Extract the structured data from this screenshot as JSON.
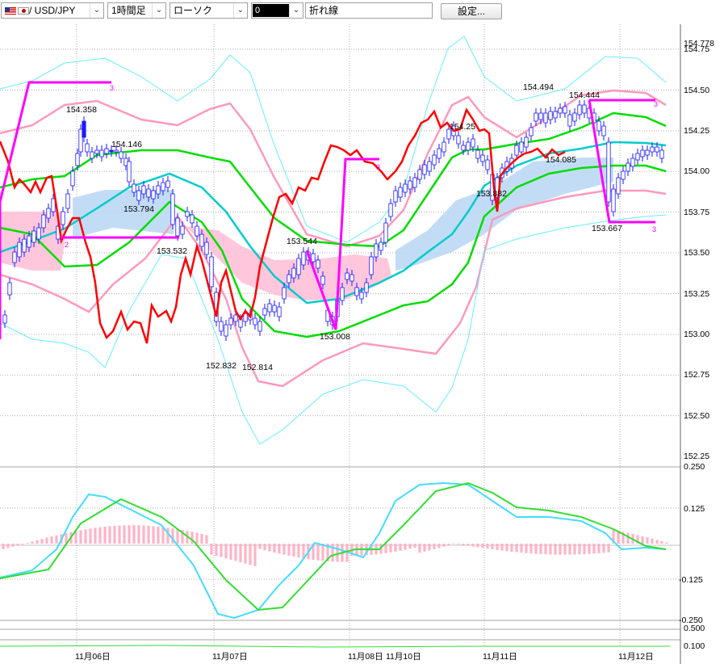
{
  "toolbar": {
    "symbol": "/ USD/JPY",
    "timeframe": "1時間足",
    "chart_style": "ローソク",
    "tool_value": "0",
    "line_type": "折れ線",
    "settings_button": "設定..."
  },
  "colors": {
    "candle_up": "#ffffff",
    "candle_down": "#1a1aff",
    "lagging_span": "#ff0000",
    "zigzag": "#ff00ff",
    "moving_average": "#00cccc",
    "bb_1sigma": "#00dd00",
    "bb_2sigma": "#ff99bb",
    "bb_3sigma": "#66eeff",
    "cloud_bull": "#bcd8f4",
    "cloud_bear": "#ffc0d8",
    "macd": "#44ddff",
    "signal": "#33dd33",
    "histogram": "#ffb3c6"
  },
  "chart_data": {
    "type": "candlestick",
    "price_axis": [
      "154.778",
      "154.75",
      "154.50",
      "154.25",
      "154.00",
      "153.75",
      "153.50",
      "153.25",
      "153.00",
      "152.75",
      "152.50",
      "152.25"
    ],
    "price_range": [
      152.25,
      154.78
    ],
    "x_axis_labels": [
      "11月06日",
      "11月07日",
      "11月08日",
      "11月10日",
      "11月11日",
      "11月12日"
    ],
    "annotations": [
      {
        "label": "154.358",
        "price": 154.358
      },
      {
        "label": "154.146",
        "price": 154.146
      },
      {
        "label": "153.794",
        "price": 153.794
      },
      {
        "label": "153.532",
        "price": 153.532
      },
      {
        "label": "152.832",
        "price": 152.832
      },
      {
        "label": "152.814",
        "price": 152.814
      },
      {
        "label": "153.544",
        "price": 153.544
      },
      {
        "label": "153.008",
        "price": 153.008
      },
      {
        "label": "154.25",
        "price": 154.25
      },
      {
        "label": "153.882",
        "price": 153.882
      },
      {
        "label": "154.494",
        "price": 154.494
      },
      {
        "label": "154.444",
        "price": 154.444
      },
      {
        "label": "154.085",
        "price": 154.085
      },
      {
        "label": "153.667",
        "price": 153.667
      }
    ],
    "zigzag_marks": [
      "3",
      "2",
      "3",
      "3",
      "3"
    ],
    "macd_axis": [
      "0.250",
      "0.125",
      "-0.125",
      "-0.250"
    ],
    "macd_range": [
      -0.25,
      0.25
    ],
    "sub_axis": [
      "0.500",
      "0.100"
    ]
  }
}
